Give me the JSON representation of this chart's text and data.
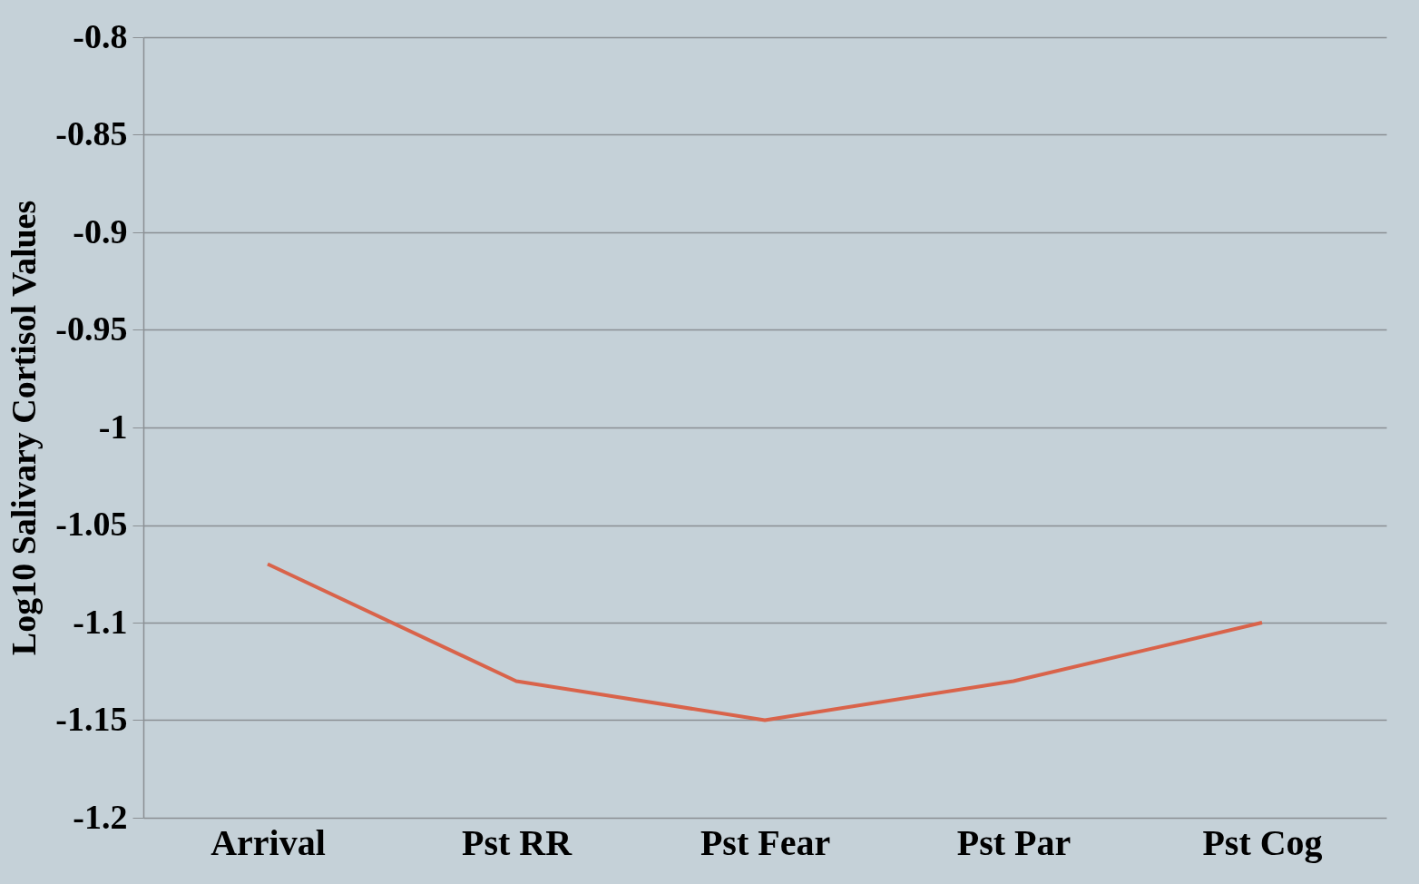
{
  "chart_data": {
    "type": "line",
    "ylabel": "Log10 Salivary Cortisol Values",
    "categories": [
      "Arrival",
      "Pst RR",
      "Pst Fear",
      "Pst Par",
      "Pst Cog"
    ],
    "series": [
      {
        "color": "#d9634a",
        "values": [
          -1.07,
          -1.13,
          -1.15,
          -1.13,
          -1.1
        ]
      }
    ],
    "ylim": [
      -1.2,
      -0.8
    ],
    "yticks": [
      -1.2,
      -1.15,
      -1.1,
      -1.05,
      -1,
      -0.95,
      -0.9,
      -0.85,
      -0.8
    ],
    "grid": "y",
    "legend": false,
    "marker": "none",
    "line_style": "solid"
  }
}
